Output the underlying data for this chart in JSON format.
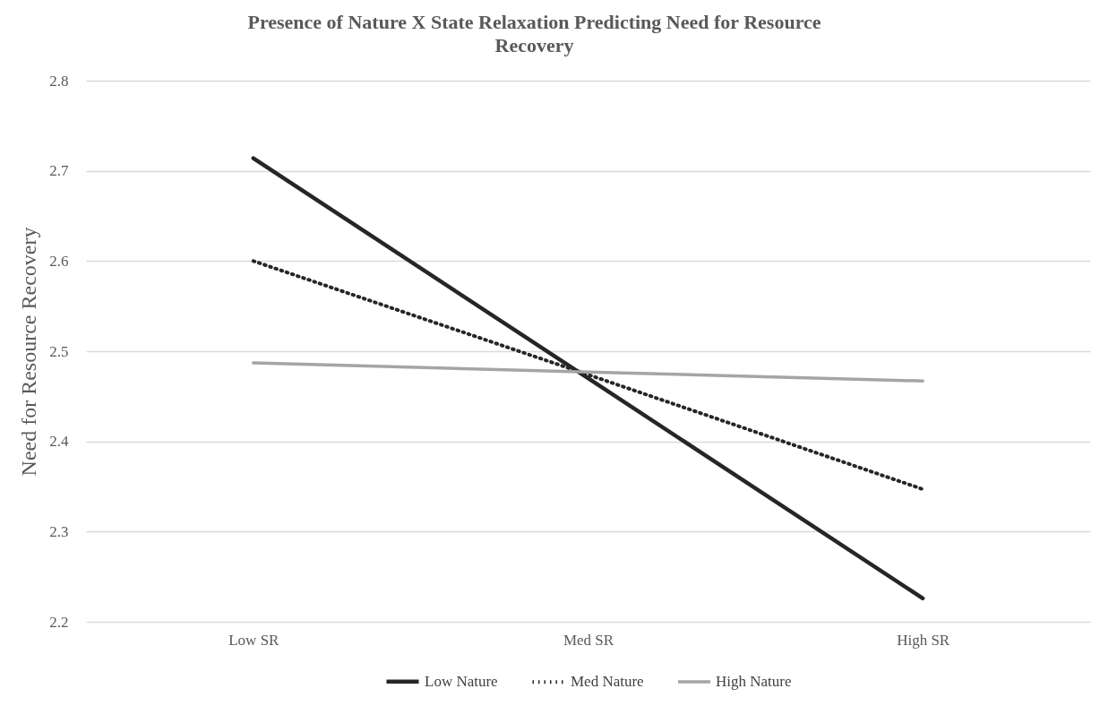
{
  "chart_data": {
    "type": "line",
    "title": "Presence of Nature X State Relaxation Predicting Need for Resource Recovery",
    "ylabel": "Need for Resource Recovery",
    "categories": [
      "Low SR",
      "Med SR",
      "High SR"
    ],
    "series": [
      {
        "name": "Low Nature",
        "color": "#262626",
        "line_style": "solid",
        "values": [
          2.714,
          2.47,
          2.226
        ]
      },
      {
        "name": "Med Nature",
        "color": "#262626",
        "line_style": "dotted",
        "values": [
          2.6,
          2.474,
          2.347
        ]
      },
      {
        "name": "High Nature",
        "color": "#a5a5a5",
        "line_style": "solid",
        "values": [
          2.487,
          2.477,
          2.467
        ]
      }
    ],
    "ylim": [
      2.2,
      2.8
    ],
    "yticks": [
      2.2,
      2.3,
      2.4,
      2.5,
      2.6,
      2.7,
      2.8
    ],
    "grid": "y",
    "legend": "bottom",
    "marker": "none"
  }
}
